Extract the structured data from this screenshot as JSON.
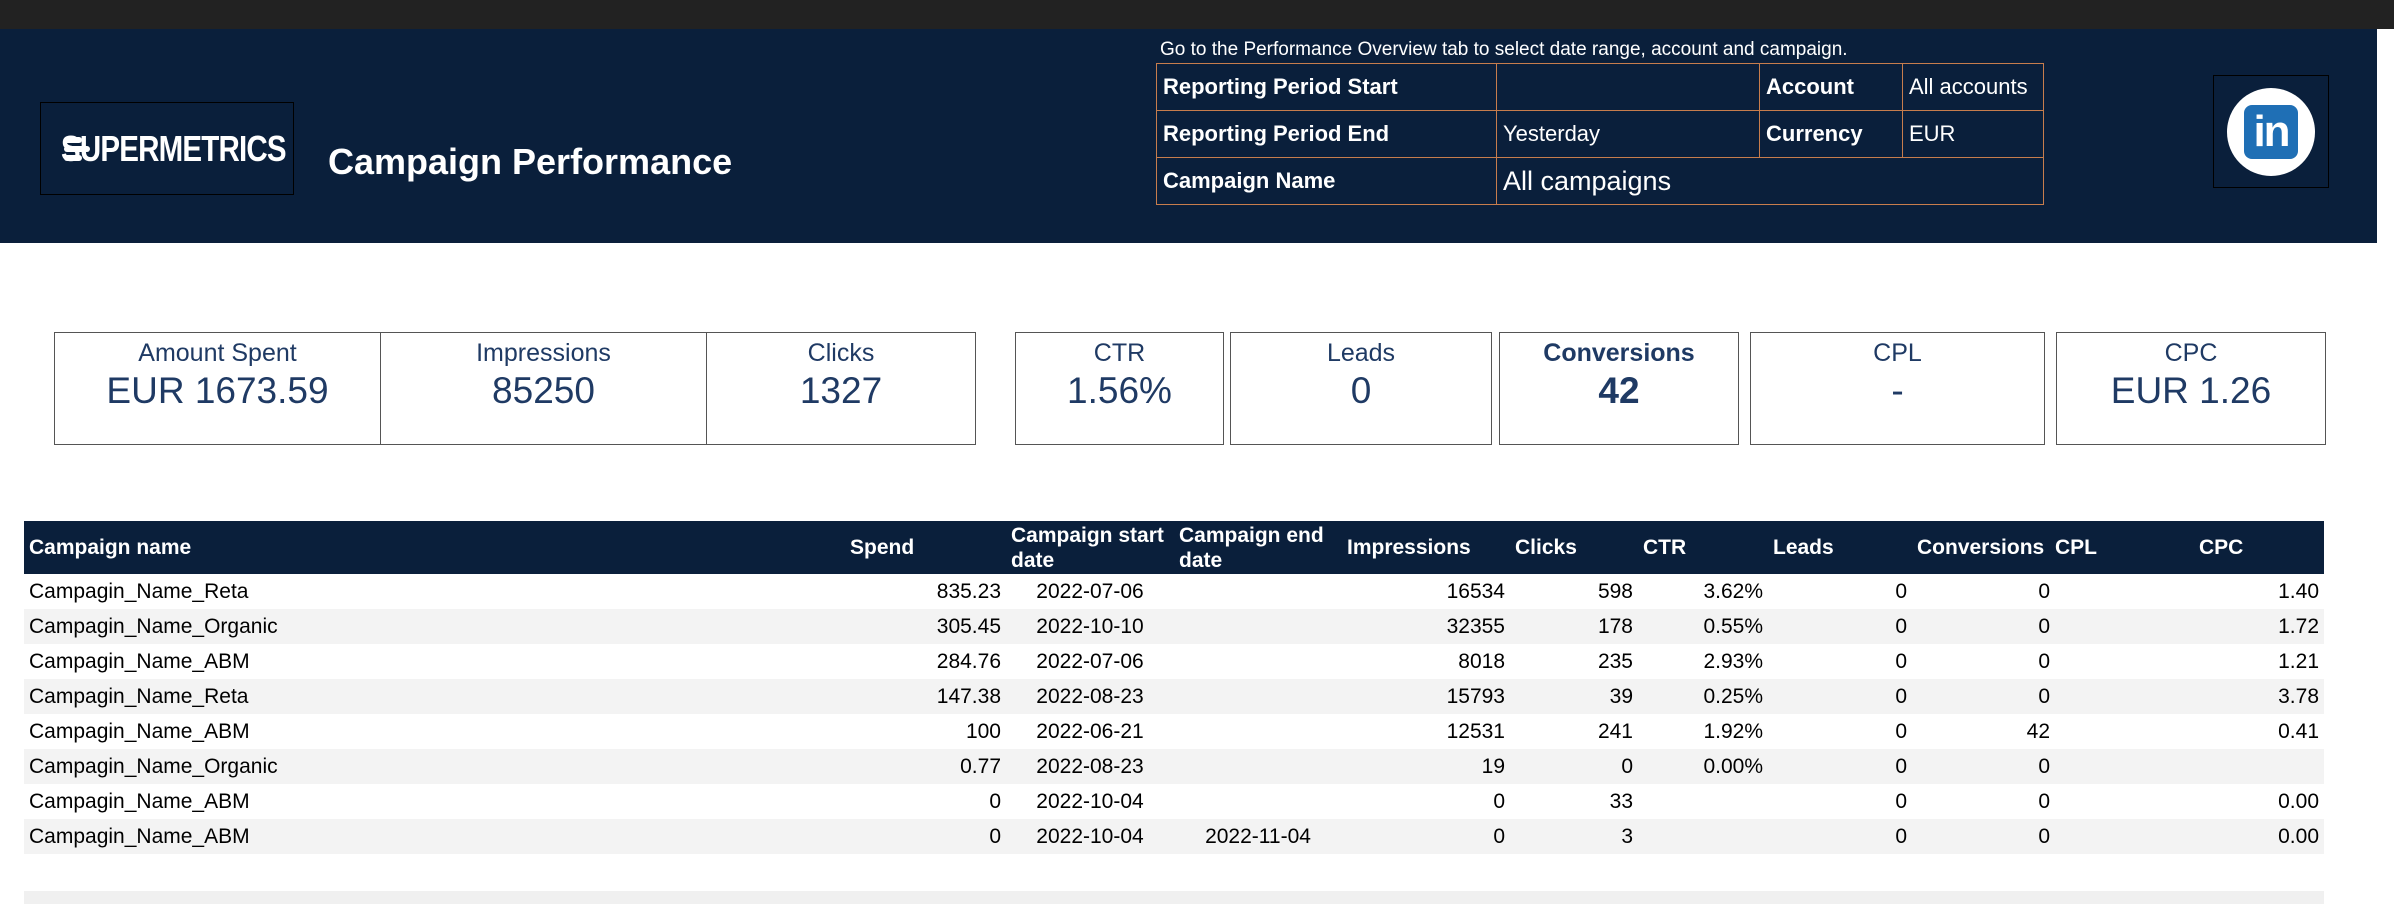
{
  "header": {
    "logo_text": "SUPERMETRICS",
    "title": "Campaign Performance",
    "note": "Go to the Performance Overview tab to select date range, account and campaign.",
    "period_start_label": "Reporting Period Start",
    "period_start_value": "",
    "period_end_label": "Reporting Period End",
    "period_end_value": "Yesterday",
    "campaign_label": "Campaign Name",
    "campaign_value": "All campaigns",
    "account_label": "Account",
    "account_value": "All accounts",
    "currency_label": "Currency",
    "currency_value": "EUR",
    "platform_icon": "linkedin-icon",
    "platform_icon_text": "in"
  },
  "colors": {
    "header_bg": "#0a1f3b",
    "kpi_text": "#1f3a64",
    "logo_red": "#e03a3c",
    "linkedin_blue": "#1f6fb5"
  },
  "kpis": [
    {
      "label": "Amount Spent",
      "value": "EUR 1673.59"
    },
    {
      "label": "Impressions",
      "value": "85250"
    },
    {
      "label": "Clicks",
      "value": "1327"
    },
    {
      "label": "CTR",
      "value": "1.56%"
    },
    {
      "label": "Leads",
      "value": "0"
    },
    {
      "label": "Conversions",
      "value": "42"
    },
    {
      "label": "CPL",
      "value": "-"
    },
    {
      "label": "CPC",
      "value": "EUR 1.26"
    }
  ],
  "table": {
    "columns": [
      "Campaign name",
      "Spend",
      "Campaign start date",
      "Campaign end date",
      "Impressions",
      "Clicks",
      "CTR",
      "Leads",
      "Conversions",
      "CPL",
      "CPC"
    ],
    "rows": [
      [
        "Campagin_Name_Reta",
        "835.23",
        "2022-07-06",
        "",
        "16534",
        "598",
        "3.62%",
        "0",
        "0",
        "",
        "1.40"
      ],
      [
        "Campagin_Name_Organic",
        "305.45",
        "2022-10-10",
        "",
        "32355",
        "178",
        "0.55%",
        "0",
        "0",
        "",
        "1.72"
      ],
      [
        "Campagin_Name_ABM",
        "284.76",
        "2022-07-06",
        "",
        "8018",
        "235",
        "2.93%",
        "0",
        "0",
        "",
        "1.21"
      ],
      [
        "Campagin_Name_Reta",
        "147.38",
        "2022-08-23",
        "",
        "15793",
        "39",
        "0.25%",
        "0",
        "0",
        "",
        "3.78"
      ],
      [
        "Campagin_Name_ABM",
        "100",
        "2022-06-21",
        "",
        "12531",
        "241",
        "1.92%",
        "0",
        "42",
        "",
        "0.41"
      ],
      [
        "Campagin_Name_Organic",
        "0.77",
        "2022-08-23",
        "",
        "19",
        "0",
        "0.00%",
        "0",
        "0",
        "",
        ""
      ],
      [
        "Campagin_Name_ABM",
        "0",
        "2022-10-04",
        "",
        "0",
        "33",
        "",
        "0",
        "0",
        "",
        "0.00"
      ],
      [
        "Campagin_Name_ABM",
        "0",
        "2022-10-04",
        "2022-11-04",
        "0",
        "3",
        "",
        "0",
        "0",
        "",
        "0.00"
      ]
    ]
  }
}
